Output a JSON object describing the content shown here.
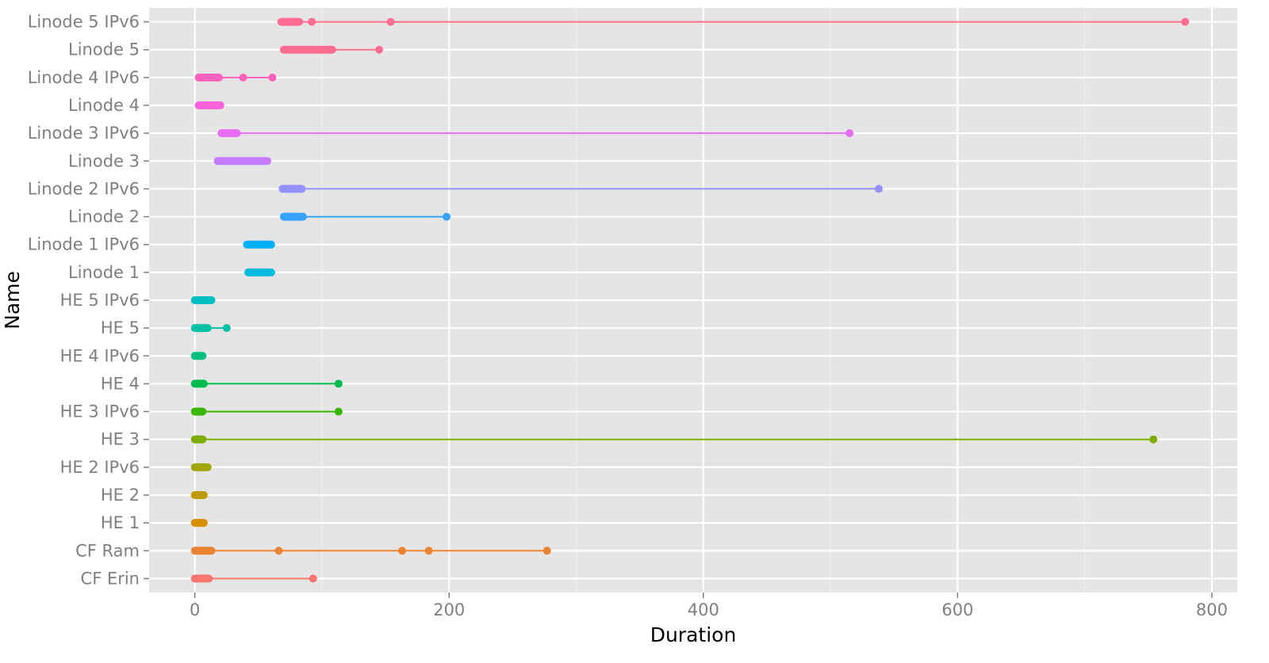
{
  "chart_data": {
    "type": "scatter",
    "xlabel": "Duration",
    "ylabel": "Name",
    "xlim": [
      -36,
      820
    ],
    "x_ticks": [
      0,
      200,
      400,
      600,
      800
    ],
    "x_tick_labels": [
      "0",
      "200",
      "400",
      "600",
      "800"
    ],
    "x_minor_ticks": [
      100,
      300,
      500,
      700
    ],
    "grid": true,
    "legend": "none",
    "categories": [
      "CF Erin",
      "CF Ram",
      "HE 1",
      "HE 2",
      "HE 2 IPv6",
      "HE 3",
      "HE 3 IPv6",
      "HE 4",
      "HE 4 IPv6",
      "HE 5",
      "HE 5 IPv6",
      "Linode 1",
      "Linode 1 IPv6",
      "Linode 2",
      "Linode 2 IPv6",
      "Linode 3",
      "Linode 3 IPv6",
      "Linode 4",
      "Linode 4 IPv6",
      "Linode 5",
      "Linode 5 IPv6"
    ],
    "series": [
      {
        "category": "CF Erin",
        "color": "#f8766d",
        "cluster": [
          0,
          11
        ],
        "outliers": [
          93
        ]
      },
      {
        "category": "CF Ram",
        "color": "#ea8331",
        "cluster": [
          0,
          13
        ],
        "outliers": [
          66,
          163,
          184,
          277
        ]
      },
      {
        "category": "HE 1",
        "color": "#d89000",
        "cluster": [
          0,
          7
        ],
        "outliers": []
      },
      {
        "category": "HE 2",
        "color": "#c09b00",
        "cluster": [
          0,
          7
        ],
        "outliers": []
      },
      {
        "category": "HE 2 IPv6",
        "color": "#a3a500",
        "cluster": [
          0,
          10
        ],
        "outliers": []
      },
      {
        "category": "HE 3",
        "color": "#7cae00",
        "cluster": [
          0,
          6
        ],
        "outliers": [
          754
        ]
      },
      {
        "category": "HE 3 IPv6",
        "color": "#39b600",
        "cluster": [
          0,
          6
        ],
        "outliers": [
          113
        ]
      },
      {
        "category": "HE 4",
        "color": "#00bb4e",
        "cluster": [
          0,
          7
        ],
        "outliers": [
          113
        ]
      },
      {
        "category": "HE 4 IPv6",
        "color": "#00bf7d",
        "cluster": [
          0,
          6
        ],
        "outliers": []
      },
      {
        "category": "HE 5",
        "color": "#00c1a3",
        "cluster": [
          0,
          10
        ],
        "outliers": [
          25
        ]
      },
      {
        "category": "HE 5 IPv6",
        "color": "#00bfc4",
        "cluster": [
          0,
          13
        ],
        "outliers": []
      },
      {
        "category": "Linode 1",
        "color": "#00bae0",
        "cluster": [
          42,
          60
        ],
        "outliers": []
      },
      {
        "category": "Linode 1 IPv6",
        "color": "#00b0f6",
        "cluster": [
          41,
          60
        ],
        "outliers": []
      },
      {
        "category": "Linode 2",
        "color": "#35a2ff",
        "cluster": [
          70,
          85
        ],
        "outliers": [
          198
        ]
      },
      {
        "category": "Linode 2 IPv6",
        "color": "#9590ff",
        "cluster": [
          69,
          84
        ],
        "outliers": [
          538
        ]
      },
      {
        "category": "Linode 3",
        "color": "#c77cff",
        "cluster": [
          18,
          57
        ],
        "outliers": []
      },
      {
        "category": "Linode 3 IPv6",
        "color": "#e76bf3",
        "cluster": [
          21,
          33
        ],
        "outliers": [
          515
        ]
      },
      {
        "category": "Linode 4",
        "color": "#fa62db",
        "cluster": [
          3,
          20
        ],
        "outliers": []
      },
      {
        "category": "Linode 4 IPv6",
        "color": "#ff62bc",
        "cluster": [
          3,
          19
        ],
        "outliers": [
          38,
          61
        ]
      },
      {
        "category": "Linode 5",
        "color": "#ff6c91",
        "cluster": [
          70,
          108
        ],
        "outliers": [
          145
        ]
      },
      {
        "category": "Linode 5 IPv6",
        "color": "#ff6c91",
        "cluster": [
          68,
          82
        ],
        "outliers": [
          92,
          154,
          779
        ]
      }
    ]
  }
}
